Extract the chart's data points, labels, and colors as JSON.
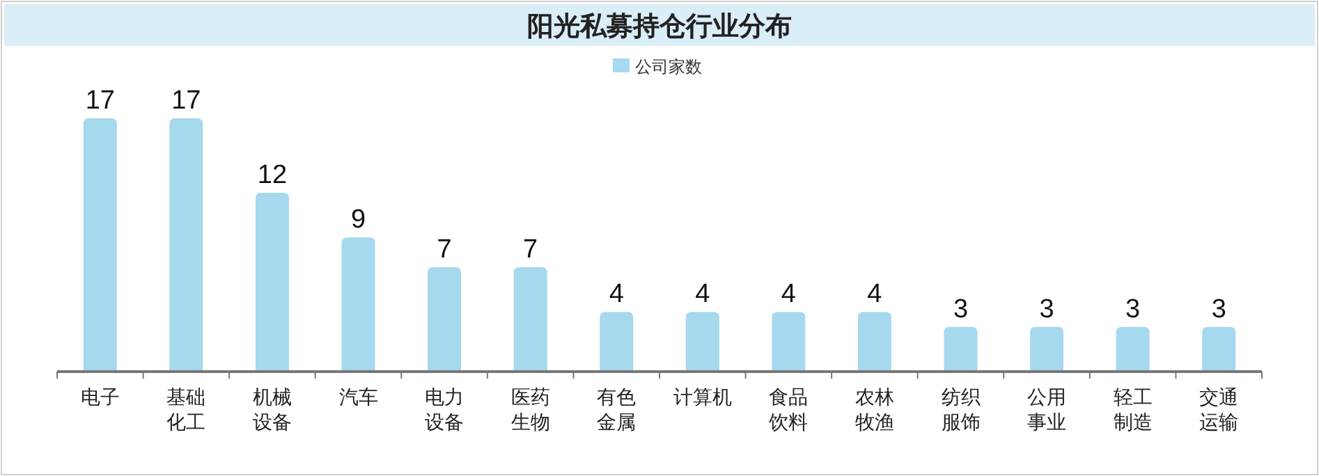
{
  "chart_data": {
    "type": "bar",
    "title": "阳光私募持仓行业分布",
    "categories": [
      "电子",
      "基础化工",
      "机械设备",
      "汽车",
      "电力设备",
      "医药生物",
      "有色金属",
      "计算机",
      "食品饮料",
      "农林牧渔",
      "纺织服饰",
      "公用事业",
      "轻工制造",
      "交通运输"
    ],
    "series": [
      {
        "name": "公司家数",
        "color": "#a6d8ee",
        "values": [
          17,
          17,
          12,
          9,
          7,
          7,
          4,
          4,
          4,
          4,
          3,
          3,
          3,
          3
        ]
      }
    ],
    "data_labels": true,
    "legend": "top",
    "grid": false
  }
}
